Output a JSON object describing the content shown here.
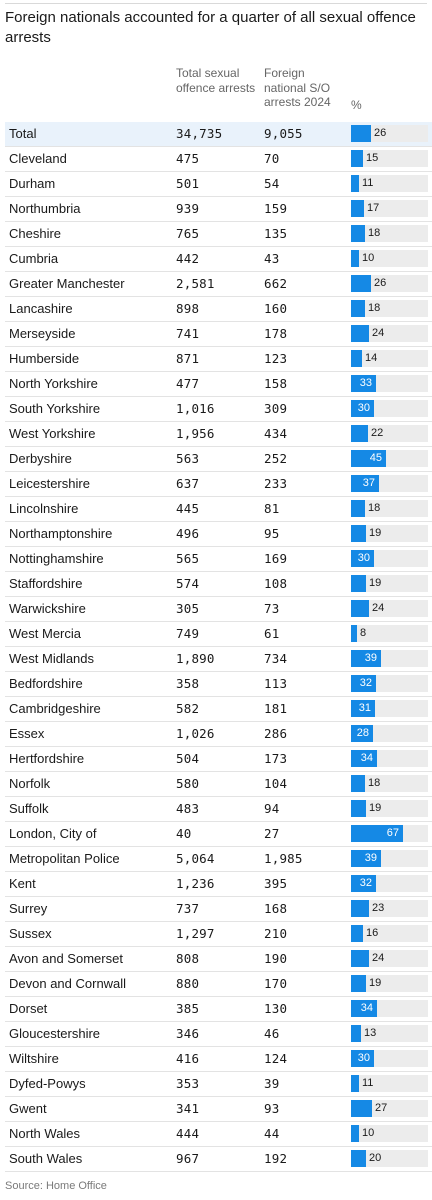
{
  "title": "Foreign nationals accounted for a quarter of all sexual offence arrests",
  "source": "Source: Home Office",
  "colors": {
    "bar": "#1589e5",
    "track": "#ececec",
    "highlight_row": "#e9f2fb"
  },
  "chart_data": {
    "type": "table",
    "title": "Foreign nationals accounted for a quarter of all sexual offence arrests",
    "columns": [
      "",
      "Total sexual offence arrests",
      "Foreign national S/O arrests 2024",
      "%"
    ],
    "percent_range": [
      0,
      100
    ],
    "rows": [
      {
        "name": "Total",
        "total": "34,735",
        "foreign": "9,055",
        "pct": 26
      },
      {
        "name": "Cleveland",
        "total": "475",
        "foreign": "70",
        "pct": 15
      },
      {
        "name": "Durham",
        "total": "501",
        "foreign": "54",
        "pct": 11
      },
      {
        "name": "Northumbria",
        "total": "939",
        "foreign": "159",
        "pct": 17
      },
      {
        "name": "Cheshire",
        "total": "765",
        "foreign": "135",
        "pct": 18
      },
      {
        "name": "Cumbria",
        "total": "442",
        "foreign": "43",
        "pct": 10
      },
      {
        "name": "Greater Manchester",
        "total": "2,581",
        "foreign": "662",
        "pct": 26
      },
      {
        "name": "Lancashire",
        "total": "898",
        "foreign": "160",
        "pct": 18
      },
      {
        "name": "Merseyside",
        "total": "741",
        "foreign": "178",
        "pct": 24
      },
      {
        "name": "Humberside",
        "total": "871",
        "foreign": "123",
        "pct": 14
      },
      {
        "name": "North Yorkshire",
        "total": "477",
        "foreign": "158",
        "pct": 33
      },
      {
        "name": "South Yorkshire",
        "total": "1,016",
        "foreign": "309",
        "pct": 30
      },
      {
        "name": "West Yorkshire",
        "total": "1,956",
        "foreign": "434",
        "pct": 22
      },
      {
        "name": "Derbyshire",
        "total": "563",
        "foreign": "252",
        "pct": 45
      },
      {
        "name": "Leicestershire",
        "total": "637",
        "foreign": "233",
        "pct": 37
      },
      {
        "name": "Lincolnshire",
        "total": "445",
        "foreign": "81",
        "pct": 18
      },
      {
        "name": "Northamptonshire",
        "total": "496",
        "foreign": "95",
        "pct": 19
      },
      {
        "name": "Nottinghamshire",
        "total": "565",
        "foreign": "169",
        "pct": 30
      },
      {
        "name": "Staffordshire",
        "total": "574",
        "foreign": "108",
        "pct": 19
      },
      {
        "name": "Warwickshire",
        "total": "305",
        "foreign": "73",
        "pct": 24
      },
      {
        "name": "West Mercia",
        "total": "749",
        "foreign": "61",
        "pct": 8
      },
      {
        "name": "West Midlands",
        "total": "1,890",
        "foreign": "734",
        "pct": 39
      },
      {
        "name": "Bedfordshire",
        "total": "358",
        "foreign": "113",
        "pct": 32
      },
      {
        "name": "Cambridgeshire",
        "total": "582",
        "foreign": "181",
        "pct": 31
      },
      {
        "name": "Essex",
        "total": "1,026",
        "foreign": "286",
        "pct": 28
      },
      {
        "name": "Hertfordshire",
        "total": "504",
        "foreign": "173",
        "pct": 34
      },
      {
        "name": "Norfolk",
        "total": "580",
        "foreign": "104",
        "pct": 18
      },
      {
        "name": "Suffolk",
        "total": "483",
        "foreign": "94",
        "pct": 19
      },
      {
        "name": "London, City of",
        "total": "40",
        "foreign": "27",
        "pct": 67
      },
      {
        "name": "Metropolitan Police",
        "total": "5,064",
        "foreign": "1,985",
        "pct": 39
      },
      {
        "name": "Kent",
        "total": "1,236",
        "foreign": "395",
        "pct": 32
      },
      {
        "name": "Surrey",
        "total": "737",
        "foreign": "168",
        "pct": 23
      },
      {
        "name": "Sussex",
        "total": "1,297",
        "foreign": "210",
        "pct": 16
      },
      {
        "name": "Avon and Somerset",
        "total": "808",
        "foreign": "190",
        "pct": 24
      },
      {
        "name": "Devon and Cornwall",
        "total": "880",
        "foreign": "170",
        "pct": 19
      },
      {
        "name": "Dorset",
        "total": "385",
        "foreign": "130",
        "pct": 34
      },
      {
        "name": "Gloucestershire",
        "total": "346",
        "foreign": "46",
        "pct": 13
      },
      {
        "name": "Wiltshire",
        "total": "416",
        "foreign": "124",
        "pct": 30
      },
      {
        "name": "Dyfed-Powys",
        "total": "353",
        "foreign": "39",
        "pct": 11
      },
      {
        "name": "Gwent",
        "total": "341",
        "foreign": "93",
        "pct": 27
      },
      {
        "name": "North Wales",
        "total": "444",
        "foreign": "44",
        "pct": 10
      },
      {
        "name": "South Wales",
        "total": "967",
        "foreign": "192",
        "pct": 20
      }
    ]
  }
}
